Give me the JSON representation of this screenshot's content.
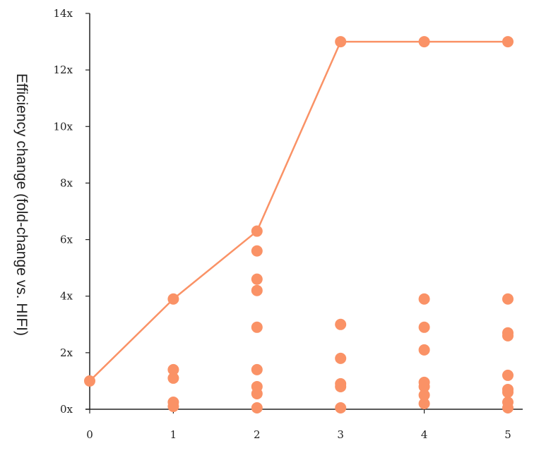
{
  "chart_data": {
    "type": "scatter",
    "title": "",
    "xlabel": "",
    "ylabel": "Efficiency change (fold-change vs. HIFI)",
    "xlim": [
      0,
      5
    ],
    "ylim": [
      0,
      14
    ],
    "x_ticks": [
      "0",
      "1",
      "2",
      "3",
      "4",
      "5"
    ],
    "y_ticks": [
      "0x",
      "2x",
      "4x",
      "6x",
      "8x",
      "10x",
      "12x",
      "14x"
    ],
    "grid": false,
    "legend": "none",
    "color": "#FA9266",
    "series": [
      {
        "kind": "line-with-markers",
        "points": [
          [
            0,
            1.0
          ],
          [
            1,
            3.9
          ],
          [
            2,
            6.3
          ],
          [
            3,
            13.0
          ],
          [
            4,
            13.0
          ],
          [
            5,
            13.0
          ]
        ]
      },
      {
        "kind": "markers",
        "points": [
          [
            1,
            1.4
          ],
          [
            1,
            1.1
          ],
          [
            1,
            0.25
          ],
          [
            1,
            0.1
          ],
          [
            2,
            5.6
          ],
          [
            2,
            4.6
          ],
          [
            2,
            4.2
          ],
          [
            2,
            2.9
          ],
          [
            2,
            1.4
          ],
          [
            2,
            0.8
          ],
          [
            2,
            0.55
          ],
          [
            2,
            0.05
          ],
          [
            3,
            3.0
          ],
          [
            3,
            1.8
          ],
          [
            3,
            0.9
          ],
          [
            3,
            0.8
          ],
          [
            3,
            0.05
          ],
          [
            4,
            3.9
          ],
          [
            4,
            2.9
          ],
          [
            4,
            2.1
          ],
          [
            4,
            0.95
          ],
          [
            4,
            0.8
          ],
          [
            4,
            0.5
          ],
          [
            4,
            0.2
          ],
          [
            5,
            3.9
          ],
          [
            5,
            2.7
          ],
          [
            5,
            2.6
          ],
          [
            5,
            1.2
          ],
          [
            5,
            0.7
          ],
          [
            5,
            0.6
          ],
          [
            5,
            0.25
          ],
          [
            5,
            0.05
          ]
        ]
      }
    ]
  }
}
